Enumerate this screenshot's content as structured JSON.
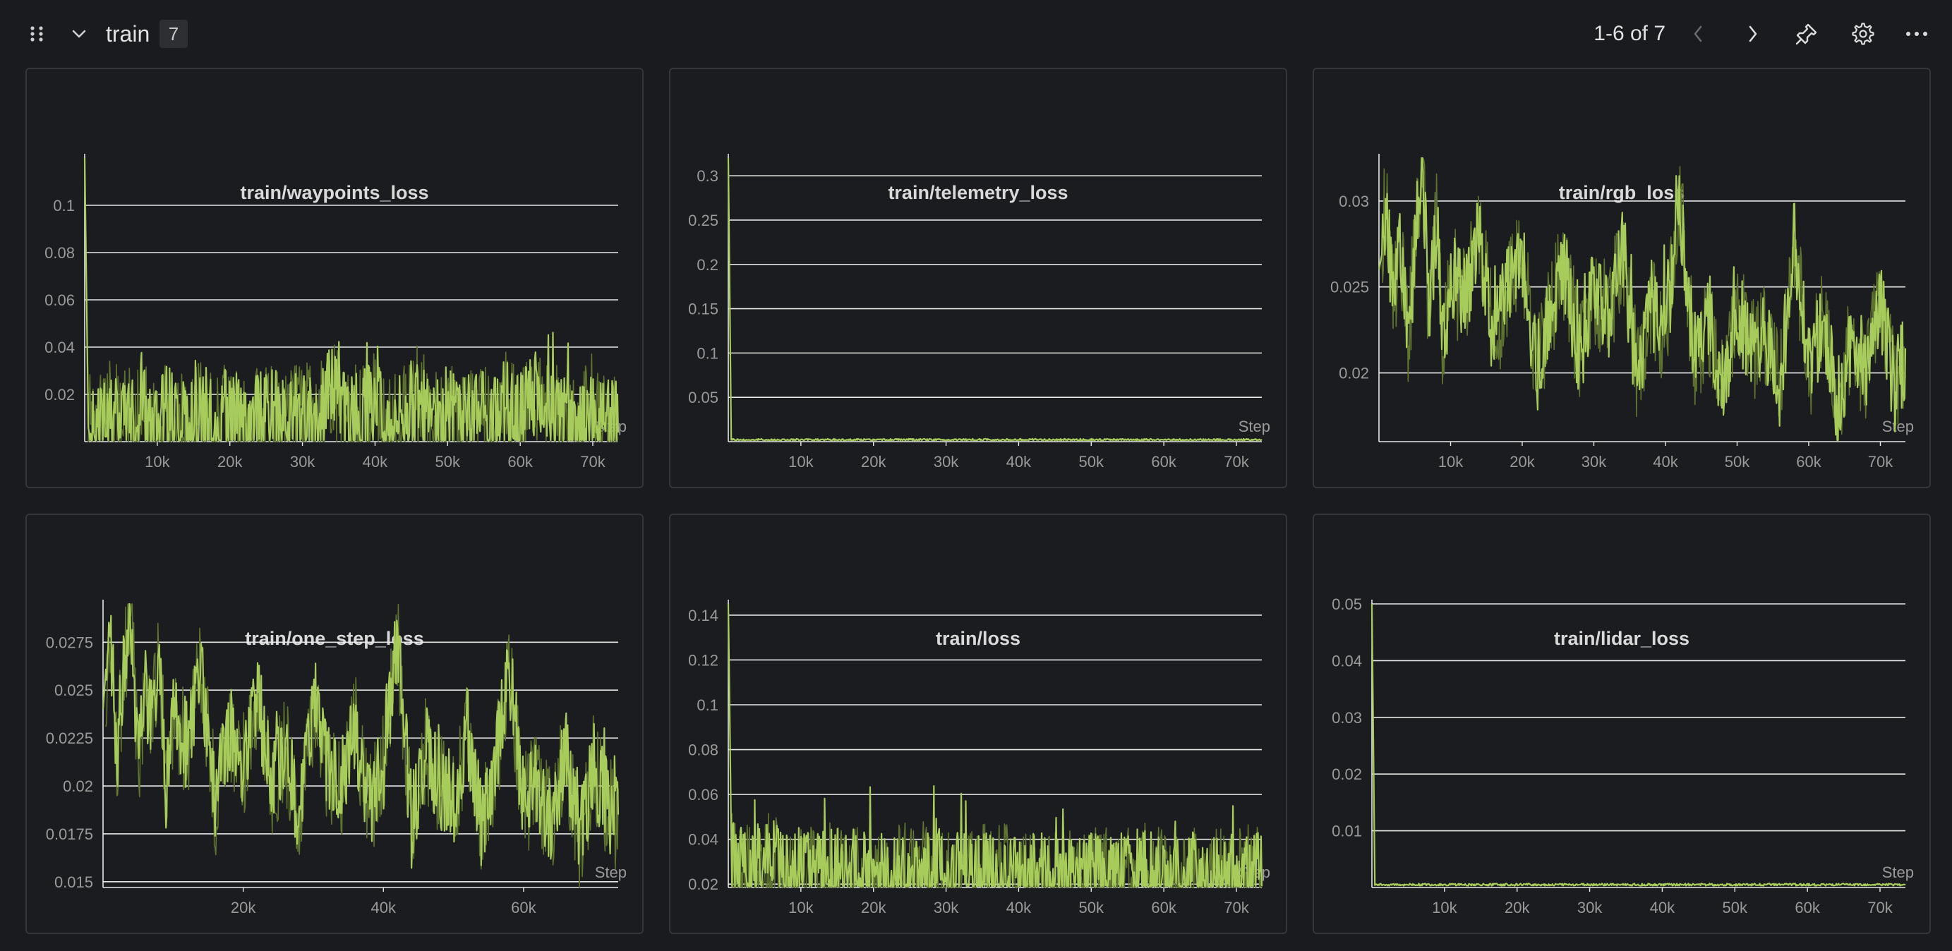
{
  "section": {
    "title": "train",
    "count": "7",
    "page_range": "1-6 of 7"
  },
  "icons": {
    "drag": "drag-handle-icon",
    "collapse": "chevron-down-icon",
    "prev": "chevron-left-icon",
    "next": "chevron-right-icon",
    "pin": "pin-icon",
    "settings": "gear-icon",
    "more": "more-horizontal-icon"
  },
  "colors": {
    "line": "#a8cc5c",
    "line_dim": "#5f7431",
    "grid": "#e8e8e8",
    "axis_text": "#9a9a9a",
    "background": "#1a1b1e"
  },
  "panels": [
    {
      "title": "train/waypoints_loss"
    },
    {
      "title": "train/telemetry_loss"
    },
    {
      "title": "train/rgb_loss"
    },
    {
      "title": "train/one_step_loss"
    },
    {
      "title": "train/loss"
    },
    {
      "title": "train/lidar_loss"
    }
  ],
  "chart_data": [
    {
      "type": "line",
      "title": "train/waypoints_loss",
      "xlabel": "Step",
      "ylabel": "",
      "xlim": [
        0,
        73500
      ],
      "ylim": [
        0,
        0.12
      ],
      "yticks": [
        0.02,
        0.04,
        0.06,
        0.08,
        0.1
      ],
      "yticklabels": [
        "0.02",
        "0.04",
        "0.06",
        "0.08",
        "0.1"
      ],
      "xticks": [
        10000,
        20000,
        30000,
        40000,
        50000,
        60000,
        70000
      ],
      "xticklabels": [
        "10k",
        "20k",
        "30k",
        "40k",
        "50k",
        "60k",
        "70k"
      ],
      "series": [
        {
          "x": [
            0,
            200,
            500,
            1000,
            2000,
            3000,
            4000,
            5000,
            6000,
            7000,
            8000,
            9000,
            10000,
            12000,
            14000,
            16000,
            18000,
            20000,
            22000,
            24000,
            26000,
            28000,
            30000,
            32000,
            34000,
            36000,
            38000,
            40000,
            42000,
            44000,
            46000,
            48000,
            50000,
            52000,
            54000,
            56000,
            58000,
            60000,
            62000,
            64000,
            66000,
            68000,
            70000,
            72000,
            73500
          ],
          "y": [
            0.12,
            0.02,
            0.01,
            0.006,
            0.012,
            0.005,
            0.02,
            0.007,
            0.012,
            0.004,
            0.018,
            0.006,
            0.009,
            0.014,
            0.005,
            0.012,
            0.007,
            0.016,
            0.006,
            0.01,
            0.013,
            0.005,
            0.015,
            0.006,
            0.027,
            0.008,
            0.011,
            0.016,
            0.006,
            0.013,
            0.019,
            0.005,
            0.012,
            0.009,
            0.014,
            0.006,
            0.017,
            0.007,
            0.022,
            0.008,
            0.011,
            0.005,
            0.015,
            0.006,
            0.01
          ]
        }
      ]
    },
    {
      "type": "line",
      "title": "train/telemetry_loss",
      "xlabel": "Step",
      "ylabel": "",
      "xlim": [
        0,
        73500
      ],
      "ylim": [
        0,
        0.32
      ],
      "yticks": [
        0.05,
        0.1,
        0.15,
        0.2,
        0.25,
        0.3
      ],
      "yticklabels": [
        "0.05",
        "0.1",
        "0.15",
        "0.2",
        "0.25",
        "0.3"
      ],
      "xticks": [
        10000,
        20000,
        30000,
        40000,
        50000,
        60000,
        70000
      ],
      "xticklabels": [
        "10k",
        "20k",
        "30k",
        "40k",
        "50k",
        "60k",
        "70k"
      ],
      "series": [
        {
          "x": [
            0,
            100,
            300,
            1000,
            5000,
            10000,
            20000,
            30000,
            40000,
            50000,
            60000,
            70000,
            73500
          ],
          "y": [
            0.32,
            0.01,
            0.003,
            0.002,
            0.002,
            0.002,
            0.002,
            0.002,
            0.002,
            0.002,
            0.002,
            0.002,
            0.002
          ]
        }
      ]
    },
    {
      "type": "line",
      "title": "train/rgb_loss",
      "xlabel": "Step",
      "ylabel": "",
      "xlim": [
        0,
        73500
      ],
      "ylim": [
        0.016,
        0.0325
      ],
      "yticks": [
        0.02,
        0.025,
        0.03
      ],
      "yticklabels": [
        "0.02",
        "0.025",
        "0.03"
      ],
      "xticks": [
        10000,
        20000,
        30000,
        40000,
        50000,
        60000,
        70000
      ],
      "xticklabels": [
        "10k",
        "20k",
        "30k",
        "40k",
        "50k",
        "60k",
        "70k"
      ],
      "series": [
        {
          "x": [
            0,
            1000,
            2000,
            3000,
            4000,
            5000,
            6000,
            7000,
            8000,
            9000,
            10000,
            12000,
            14000,
            16000,
            18000,
            20000,
            22000,
            24000,
            26000,
            28000,
            30000,
            32000,
            34000,
            36000,
            38000,
            40000,
            42000,
            44000,
            46000,
            48000,
            50000,
            52000,
            54000,
            56000,
            58000,
            60000,
            62000,
            64000,
            66000,
            68000,
            70000,
            72000,
            73500
          ],
          "y": [
            0.026,
            0.03,
            0.024,
            0.028,
            0.022,
            0.027,
            0.033,
            0.023,
            0.029,
            0.021,
            0.026,
            0.024,
            0.028,
            0.022,
            0.025,
            0.027,
            0.02,
            0.024,
            0.026,
            0.021,
            0.025,
            0.023,
            0.027,
            0.02,
            0.024,
            0.022,
            0.03,
            0.021,
            0.023,
            0.019,
            0.024,
            0.021,
            0.022,
            0.019,
            0.028,
            0.02,
            0.023,
            0.018,
            0.022,
            0.02,
            0.024,
            0.019,
            0.021
          ]
        }
      ]
    },
    {
      "type": "line",
      "title": "train/one_step_loss",
      "xlabel": "Step",
      "ylabel": "",
      "xlim": [
        0,
        73500
      ],
      "ylim": [
        0.0147,
        0.0295
      ],
      "yticks": [
        0.015,
        0.0175,
        0.02,
        0.0225,
        0.025,
        0.0275
      ],
      "yticklabels": [
        "0.015",
        "0.0175",
        "0.02",
        "0.0225",
        "0.025",
        "0.0275"
      ],
      "xticks": [
        20000,
        40000,
        60000
      ],
      "xticklabels": [
        "20k",
        "40k",
        "60k"
      ],
      "series": [
        {
          "x": [
            0,
            1000,
            2000,
            3000,
            4000,
            5000,
            6000,
            7000,
            8000,
            9000,
            10000,
            12000,
            14000,
            16000,
            18000,
            20000,
            22000,
            24000,
            26000,
            28000,
            30000,
            32000,
            34000,
            36000,
            38000,
            40000,
            42000,
            44000,
            46000,
            48000,
            50000,
            52000,
            54000,
            56000,
            58000,
            60000,
            62000,
            64000,
            66000,
            68000,
            70000,
            72000,
            73500
          ],
          "y": [
            0.024,
            0.028,
            0.022,
            0.026,
            0.029,
            0.021,
            0.025,
            0.023,
            0.027,
            0.02,
            0.024,
            0.022,
            0.026,
            0.019,
            0.023,
            0.021,
            0.025,
            0.02,
            0.022,
            0.018,
            0.024,
            0.021,
            0.02,
            0.023,
            0.019,
            0.021,
            0.028,
            0.018,
            0.022,
            0.02,
            0.019,
            0.023,
            0.018,
            0.021,
            0.026,
            0.019,
            0.02,
            0.018,
            0.022,
            0.017,
            0.021,
            0.019,
            0.018
          ]
        }
      ]
    },
    {
      "type": "line",
      "title": "train/loss",
      "xlabel": "Step",
      "ylabel": "",
      "xlim": [
        0,
        73500
      ],
      "ylim": [
        0.0185,
        0.145
      ],
      "yticks": [
        0.02,
        0.04,
        0.06,
        0.08,
        0.1,
        0.12,
        0.14
      ],
      "yticklabels": [
        "0.02",
        "0.04",
        "0.06",
        "0.08",
        "0.1",
        "0.12",
        "0.14"
      ],
      "xticks": [
        10000,
        20000,
        30000,
        40000,
        50000,
        60000,
        70000
      ],
      "xticklabels": [
        "10k",
        "20k",
        "30k",
        "40k",
        "50k",
        "60k",
        "70k"
      ],
      "series": [
        {
          "x": [
            0,
            200,
            500,
            1000,
            2000,
            3000,
            4000,
            5000,
            6000,
            7000,
            8000,
            9000,
            10000,
            12000,
            14000,
            16000,
            18000,
            20000,
            22000,
            24000,
            26000,
            28000,
            30000,
            32000,
            34000,
            36000,
            38000,
            40000,
            42000,
            44000,
            46000,
            48000,
            50000,
            52000,
            54000,
            56000,
            58000,
            60000,
            62000,
            64000,
            66000,
            68000,
            70000,
            72000,
            73500
          ],
          "y": [
            0.145,
            0.03,
            0.028,
            0.026,
            0.03,
            0.025,
            0.029,
            0.024,
            0.033,
            0.026,
            0.027,
            0.023,
            0.026,
            0.024,
            0.027,
            0.023,
            0.025,
            0.026,
            0.022,
            0.025,
            0.023,
            0.026,
            0.022,
            0.024,
            0.027,
            0.022,
            0.024,
            0.021,
            0.025,
            0.022,
            0.023,
            0.021,
            0.024,
            0.022,
            0.023,
            0.021,
            0.025,
            0.022,
            0.021,
            0.023,
            0.02,
            0.024,
            0.021,
            0.023,
            0.022
          ]
        }
      ]
    },
    {
      "type": "line",
      "title": "train/lidar_loss",
      "xlabel": "Step",
      "ylabel": "",
      "xlim": [
        0,
        73500
      ],
      "ylim": [
        0,
        0.05
      ],
      "yticks": [
        0.01,
        0.02,
        0.03,
        0.04,
        0.05
      ],
      "yticklabels": [
        "0.01",
        "0.02",
        "0.03",
        "0.04",
        "0.05"
      ],
      "xticks": [
        10000,
        20000,
        30000,
        40000,
        50000,
        60000,
        70000
      ],
      "xticklabels": [
        "10k",
        "20k",
        "30k",
        "40k",
        "50k",
        "60k",
        "70k"
      ],
      "series": [
        {
          "x": [
            0,
            100,
            300,
            1000,
            5000,
            10000,
            20000,
            30000,
            40000,
            50000,
            60000,
            70000,
            73500
          ],
          "y": [
            0.05,
            0.002,
            0.0006,
            0.0005,
            0.0005,
            0.0005,
            0.0005,
            0.0005,
            0.0005,
            0.0005,
            0.0005,
            0.0005,
            0.0005
          ]
        }
      ]
    }
  ]
}
